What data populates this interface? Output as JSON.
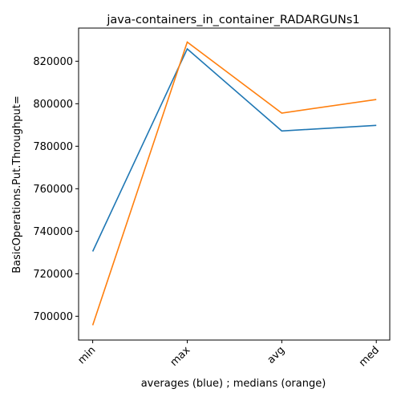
{
  "chart_data": {
    "type": "line",
    "title": "java-containers_in_container_RADARGUNs1",
    "xlabel": "averages (blue) ; medians (orange)",
    "ylabel": "BasicOperations.Put.Throughput=",
    "categories": [
      "min",
      "max",
      "avg",
      "med"
    ],
    "series": [
      {
        "values": [
          730500,
          825800,
          787200,
          789800
        ],
        "color": "#1f77b4"
      },
      {
        "values": [
          695800,
          829000,
          795600,
          802000
        ],
        "color": "#ff7f0e"
      }
    ],
    "ylim": [
      688800,
      835600
    ],
    "yticks": [
      700000,
      720000,
      740000,
      760000,
      780000,
      800000,
      820000
    ],
    "ytick_labels": [
      "700000",
      "720000",
      "740000",
      "760000",
      "780000",
      "800000",
      "820000"
    ],
    "grid": false,
    "legend": "none"
  }
}
